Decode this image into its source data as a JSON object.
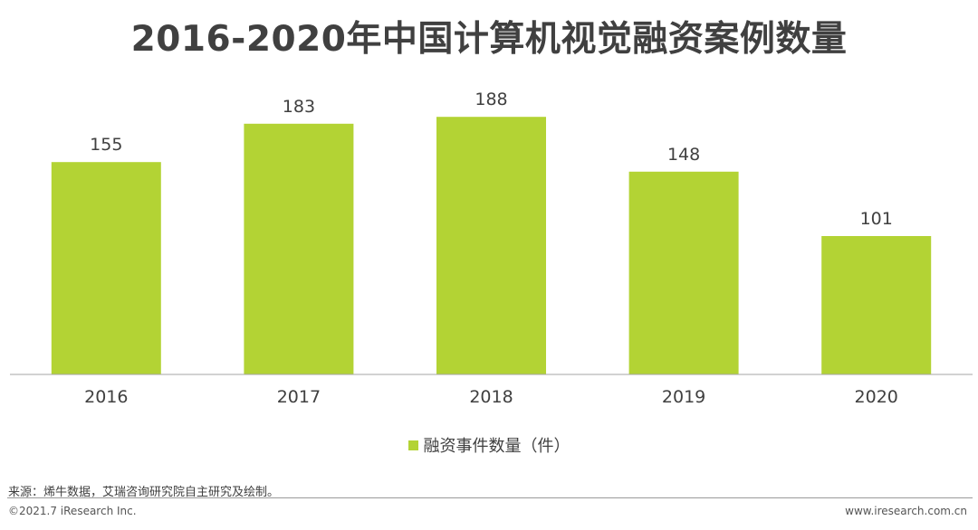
{
  "title": "2016-2020年中国计算机视觉融资案例数量",
  "chart_data": {
    "type": "bar",
    "title": "2016-2020年中国计算机视觉融资案例数量",
    "categories": [
      "2016",
      "2017",
      "2018",
      "2019",
      "2020"
    ],
    "series": [
      {
        "name": "融资事件数量（件）",
        "values": [
          155,
          183,
          188,
          148,
          101
        ],
        "color": "#b3d334"
      }
    ],
    "data_labels": true,
    "ylim": [
      0,
      200
    ],
    "grid": false,
    "legend_position": "bottom"
  },
  "legend": {
    "label": "融资事件数量（件）"
  },
  "footer": {
    "source": "来源：烯牛数据，艾瑞咨询研究院自主研究及绘制。",
    "copyright": "©2021.7 iResearch Inc.",
    "website": "www.iresearch.com.cn"
  }
}
